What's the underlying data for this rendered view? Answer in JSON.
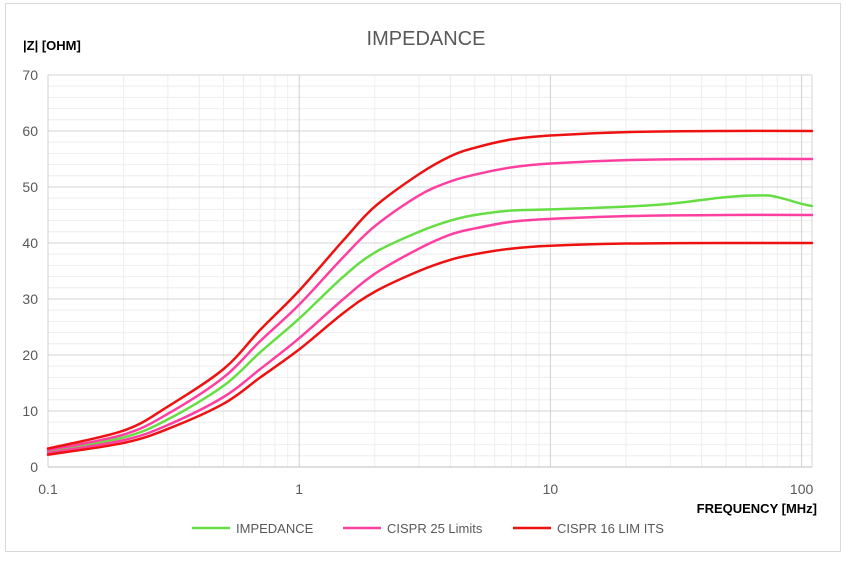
{
  "chart_data": {
    "type": "line",
    "title": "IMPEDANCE",
    "ylabel": "|Z| [OHM]",
    "xlabel": "FREQUENCY [MHz]",
    "x_scale": "log",
    "xlim": [
      0.1,
      110
    ],
    "ylim": [
      0,
      70
    ],
    "x_ticks": [
      0.1,
      1,
      10,
      100
    ],
    "x_tick_labels": [
      "0.1",
      "1",
      "10",
      "100"
    ],
    "y_ticks": [
      0,
      10,
      20,
      30,
      40,
      50,
      60,
      70
    ],
    "y_tick_labels": [
      "0",
      "10",
      "20",
      "30",
      "40",
      "50",
      "60",
      "70"
    ],
    "grid": true,
    "legend_position": "bottom",
    "series": [
      {
        "name": "IMPEDANCE",
        "color": "#66dd44",
        "points": [
          [
            0.1,
            2.8
          ],
          [
            0.2,
            5.3
          ],
          [
            0.3,
            8.5
          ],
          [
            0.5,
            14.5
          ],
          [
            0.7,
            20.5
          ],
          [
            1,
            26.5
          ],
          [
            1.5,
            34
          ],
          [
            2,
            38.3
          ],
          [
            3,
            42
          ],
          [
            4,
            44
          ],
          [
            5,
            45
          ],
          [
            7,
            45.8
          ],
          [
            10,
            46
          ],
          [
            20,
            46.5
          ],
          [
            30,
            47
          ],
          [
            50,
            48.2
          ],
          [
            70,
            48.5
          ],
          [
            80,
            48.2
          ],
          [
            100,
            47
          ],
          [
            110,
            46.6
          ]
        ]
      },
      {
        "name": "CISPR 25 Limits",
        "color": "#ff3fa0",
        "points": [
          [
            0.1,
            2.5
          ],
          [
            0.2,
            4.8
          ],
          [
            0.3,
            7.5
          ],
          [
            0.5,
            12.5
          ],
          [
            0.7,
            17.5
          ],
          [
            1,
            23
          ],
          [
            1.5,
            30
          ],
          [
            2,
            34.5
          ],
          [
            3,
            39
          ],
          [
            4,
            41.5
          ],
          [
            5,
            42.6
          ],
          [
            7,
            43.8
          ],
          [
            10,
            44.3
          ],
          [
            20,
            44.8
          ],
          [
            50,
            45
          ],
          [
            110,
            45
          ]
        ]
      },
      {
        "name": "CISPR 25 Limits",
        "color": "#ff3fa0",
        "points": [
          [
            0.1,
            3
          ],
          [
            0.2,
            5.8
          ],
          [
            0.3,
            9.5
          ],
          [
            0.5,
            16
          ],
          [
            0.7,
            22.5
          ],
          [
            1,
            29
          ],
          [
            1.5,
            37.5
          ],
          [
            2,
            43
          ],
          [
            3,
            48.5
          ],
          [
            4,
            51
          ],
          [
            5,
            52.2
          ],
          [
            7,
            53.5
          ],
          [
            10,
            54.2
          ],
          [
            20,
            54.8
          ],
          [
            50,
            55
          ],
          [
            110,
            55
          ]
        ]
      },
      {
        "name": "CISPR 16 LIMITS",
        "color": "#ee1111",
        "points": [
          [
            0.1,
            2.2
          ],
          [
            0.2,
            4.3
          ],
          [
            0.3,
            6.8
          ],
          [
            0.5,
            11.3
          ],
          [
            0.7,
            16
          ],
          [
            1,
            21
          ],
          [
            1.5,
            27.5
          ],
          [
            2,
            31.3
          ],
          [
            3,
            35
          ],
          [
            4,
            37
          ],
          [
            5,
            38
          ],
          [
            7,
            39
          ],
          [
            10,
            39.5
          ],
          [
            20,
            39.9
          ],
          [
            50,
            40
          ],
          [
            110,
            40
          ]
        ]
      },
      {
        "name": "CISPR 16 LIMITS",
        "color": "#ee1111",
        "points": [
          [
            0.1,
            3.3
          ],
          [
            0.2,
            6.5
          ],
          [
            0.3,
            10.8
          ],
          [
            0.5,
            17.5
          ],
          [
            0.7,
            24.5
          ],
          [
            1,
            31.5
          ],
          [
            1.5,
            40.5
          ],
          [
            2,
            46.5
          ],
          [
            3,
            52.3
          ],
          [
            4,
            55.5
          ],
          [
            5,
            57
          ],
          [
            7,
            58.5
          ],
          [
            10,
            59.2
          ],
          [
            20,
            59.8
          ],
          [
            50,
            60
          ],
          [
            110,
            60
          ]
        ]
      }
    ],
    "legend": [
      {
        "label": "IMPEDANCE",
        "color": "#66dd44"
      },
      {
        "label": "CISPR 25 Limits",
        "color": "#ff3fa0"
      },
      {
        "label": "CISPR 16 LIM ITS",
        "color": "#ee1111"
      }
    ]
  }
}
